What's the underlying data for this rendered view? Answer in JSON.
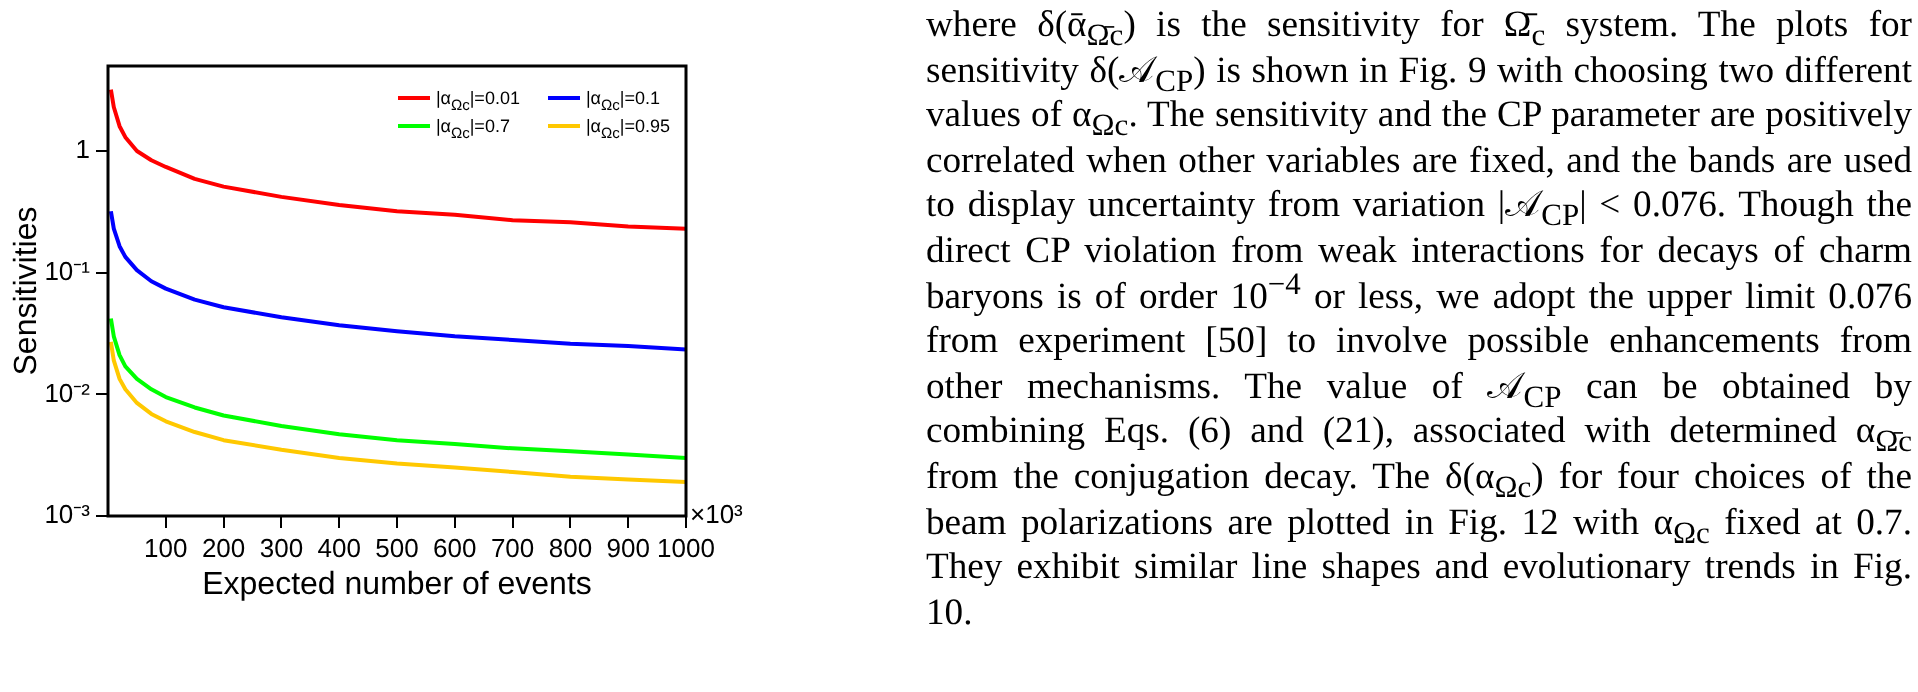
{
  "chart_data": {
    "type": "line",
    "x": [
      5,
      10,
      20,
      30,
      50,
      75,
      100,
      150,
      200,
      300,
      400,
      500,
      600,
      700,
      800,
      900,
      1000
    ],
    "series": [
      {
        "name": "|α$_{Ωc}$|=0.01",
        "color": "#ff0000",
        "values": [
          3.2,
          2.3,
          1.6,
          1.3,
          1.0,
          0.84,
          0.74,
          0.59,
          0.51,
          0.42,
          0.36,
          0.32,
          0.3,
          0.27,
          0.26,
          0.24,
          0.23
        ]
      },
      {
        "name": "|α$_{Ωc}$|=0.1",
        "color": "#0000ff",
        "values": [
          0.32,
          0.23,
          0.165,
          0.135,
          0.105,
          0.085,
          0.074,
          0.06,
          0.052,
          0.043,
          0.037,
          0.033,
          0.03,
          0.028,
          0.026,
          0.025,
          0.0234
        ]
      },
      {
        "name": "|α$_{Ωc}$|=0.7",
        "color": "#00ff00",
        "values": [
          0.042,
          0.03,
          0.021,
          0.017,
          0.0134,
          0.011,
          0.0095,
          0.0078,
          0.0067,
          0.0055,
          0.0047,
          0.0042,
          0.0039,
          0.0036,
          0.0034,
          0.0032,
          0.003
        ]
      },
      {
        "name": "|α$_{Ωc}$|=0.95",
        "color": "#ffc800",
        "values": [
          0.027,
          0.019,
          0.0134,
          0.011,
          0.0085,
          0.0069,
          0.006,
          0.0049,
          0.0042,
          0.0035,
          0.003,
          0.0027,
          0.0025,
          0.0023,
          0.0021,
          0.002,
          0.0019
        ]
      }
    ],
    "xlabel": "Expected number of events",
    "ylabel": "Sensitivities",
    "xlim": [
      0,
      1000
    ],
    "xticks": [
      100,
      200,
      300,
      400,
      500,
      600,
      700,
      800,
      900,
      1000
    ],
    "ylim": [
      0.001,
      5
    ],
    "yticks": [
      {
        "value": 0.001,
        "label": "10⁻³"
      },
      {
        "value": 0.01,
        "label": "10⁻²"
      },
      {
        "value": 0.1,
        "label": "10⁻¹"
      },
      1
    ],
    "log": "y",
    "grid": false,
    "legend": "top right",
    "marker": "none",
    "line_style": "solid",
    "annotations": [
      "×10³",
      "where δ(ᾱ$_{Ω̄c}$) is the sensitivity for Ω̄$_{c}$ system. The plots for sensitivity δ(𝒜$_{CP}$) is shown in Fig. 9 with choosing two different values of α$_{Ωc}$. The sensitivity and the CP parameter are positively correlated when other variables are fixed, and the bands are used to display uncertainty from variation |𝒜$_{CP}$| < 0.076. Though the direct CP violation from weak interactions for decays of charm baryons is of order 10$^{−4}$ or less, we adopt the upper limit 0.076 from experiment [50] to involve possible enhancements from other mechanisms. The value of 𝒜$_{CP}$ can be obtained by combining Eqs. (6) and (21), associated with determined α$_{Ω̄c}$ from the conjugation decay. The δ(α$_{Ωc}$) for four choices of the beam polarizations are plotted in Fig. 12 with α$_{Ωc}$ fixed at 0.7. They exhibit similar line shapes and evolutionary trends in Fig. 10."
    ]
  }
}
